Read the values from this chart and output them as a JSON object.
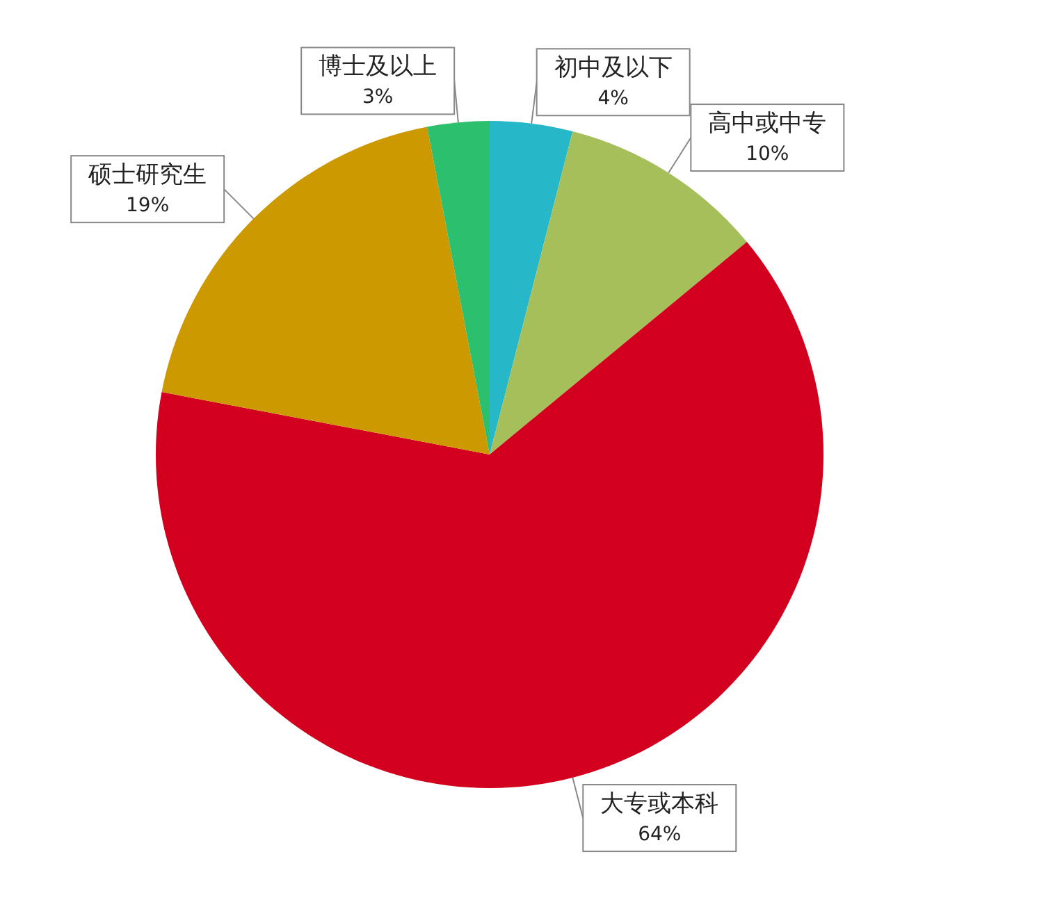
{
  "chart_data": {
    "type": "pie",
    "categories": [
      "初中及以下",
      "高中或中专",
      "大专或本科",
      "硕士研究生",
      "博士及以上"
    ],
    "values": [
      4,
      10,
      64,
      19,
      3
    ],
    "value_labels": [
      "4%",
      "10%",
      "64%",
      "19%",
      "3%"
    ],
    "colors": [
      "#26b8c8",
      "#a5c05a",
      "#d2001e",
      "#cc9900",
      "#2bbf6e"
    ],
    "legend": false
  }
}
